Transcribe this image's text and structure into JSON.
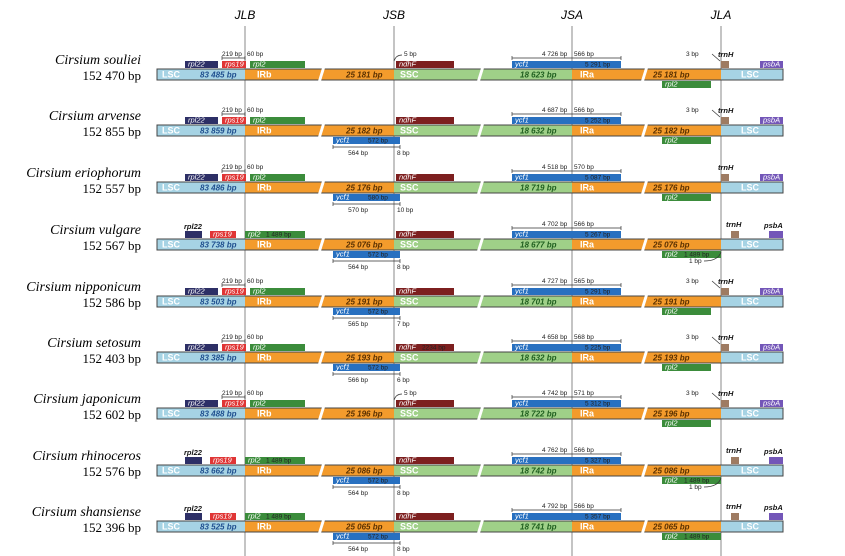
{
  "junctions": [
    "JLB",
    "JSB",
    "JSA",
    "JLA"
  ],
  "regions": {
    "lsc": "LSC",
    "irb": "IRb",
    "ssc": "SSC",
    "ira": "IRa"
  },
  "colors": {
    "lsc": "#a6d3e4",
    "ir": "#f39b2c",
    "ssc": "#9fd088",
    "dark_blue": "#2d2f66",
    "red": "#e03535",
    "green": "#3b8c3b",
    "maroon": "#7d1f1f",
    "blue": "#2870c0",
    "brown": "#9e7b62",
    "purple": "#7356b8",
    "junction_line": "#8a8a8a"
  },
  "genes": {
    "rpl22": "rpl22",
    "rps19": "rps19",
    "rpl2": "rpl2",
    "ndhF": "ndhF",
    "ycf1": "ycf1",
    "trnH": "trnH",
    "psbA": "psbA"
  },
  "species": [
    {
      "name": "Cirsium souliei",
      "length": "152 470 bp",
      "lsc": "83 485 bp",
      "irb": "25 181 bp",
      "ssc": "18 623 bp",
      "ira": "25 181 bp",
      "rps19_ann": "219 bp",
      "rps19_ann2": "60 bp",
      "jsb_top": "5 bp",
      "ycf1_top1": "4 726 bp",
      "ycf1_top2": "566 bp",
      "ycf1_inner": "5 291 bp",
      "ycf1_b_len": "",
      "ycf1_below1": "",
      "ycf1_below2": "",
      "rpl2_len": "",
      "rpl2a_len": "",
      "trnh_ann": "3 bp",
      "ndhf_len": ""
    },
    {
      "name": "Cirsium arvense",
      "length": "152 855 bp",
      "lsc": "83 859 bp",
      "irb": "25 182 bp",
      "ssc": "18 632 bp",
      "ira": "25 182 bp",
      "rps19_ann": "219 bp",
      "rps19_ann2": "60 bp",
      "jsb_top": "",
      "ycf1_top1": "4 687 bp",
      "ycf1_top2": "566 bp",
      "ycf1_inner": "5 252 bp",
      "ycf1_b_len": "572 bp",
      "ycf1_below1": "564 bp",
      "ycf1_below2": "8 bp",
      "rpl2_len": "",
      "rpl2a_len": "",
      "trnh_ann": "3 bp",
      "ndhf_len": ""
    },
    {
      "name": "Cirsium eriophorum",
      "length": "152 557 bp",
      "lsc": "83 486 bp",
      "irb": "25 176 bp",
      "ssc": "18 719 bp",
      "ira": "25 176 bp",
      "rps19_ann": "219 bp",
      "rps19_ann2": "60 bp",
      "jsb_top": "",
      "ycf1_top1": "4 518 bp",
      "ycf1_top2": "570 bp",
      "ycf1_inner": "5 087 bp",
      "ycf1_b_len": "580 bp",
      "ycf1_below1": "570 bp",
      "ycf1_below2": "10 bp",
      "rpl2_len": "",
      "rpl2a_len": "",
      "trnh_ann": "",
      "ndhf_len": ""
    },
    {
      "name": "Cirsium vulgare",
      "length": "152 567 bp",
      "lsc": "83 738 bp",
      "irb": "25 076 bp",
      "ssc": "18 677 bp",
      "ira": "25 076 bp",
      "rps19_ann": "",
      "rps19_ann2": "",
      "jsb_top": "",
      "ycf1_top1": "4 702 bp",
      "ycf1_top2": "566 bp",
      "ycf1_inner": "5 267 bp",
      "ycf1_b_len": "572 bp",
      "ycf1_below1": "564 bp",
      "ycf1_below2": "8 bp",
      "rpl2_len": "1 489 bp",
      "rpl2a_len": "1 489 bp",
      "trnh_ann": "1 bp",
      "ndhf_len": ""
    },
    {
      "name": "Cirsium nipponicum",
      "length": "152 586 bp",
      "lsc": "83 503 bp",
      "irb": "25 191 bp",
      "ssc": "18 701 bp",
      "ira": "25 191 bp",
      "rps19_ann": "219 bp",
      "rps19_ann2": "60 bp",
      "jsb_top": "",
      "ycf1_top1": "4 727 bp",
      "ycf1_top2": "565 bp",
      "ycf1_inner": "5 291 bp",
      "ycf1_b_len": "572 bp",
      "ycf1_below1": "565 bp",
      "ycf1_below2": "7 bp",
      "rpl2_len": "",
      "rpl2a_len": "",
      "trnh_ann": "3 bp",
      "ndhf_len": ""
    },
    {
      "name": "Cirsium setosum",
      "length": "152 403 bp",
      "lsc": "83 385 bp",
      "irb": "25 193 bp",
      "ssc": "18 632 bp",
      "ira": "25 193 bp",
      "rps19_ann": "219 bp",
      "rps19_ann2": "60 bp",
      "jsb_top": "",
      "ycf1_top1": "4 658 bp",
      "ycf1_top2": "568 bp",
      "ycf1_inner": "5 225 bp",
      "ycf1_b_len": "572 bp",
      "ycf1_below1": "566 bp",
      "ycf1_below2": "6 bp",
      "rpl2_len": "",
      "rpl2a_len": "",
      "trnh_ann": "3 bp",
      "ndhf_len": "2234 bp"
    },
    {
      "name": "Cirsium japonicum",
      "length": "152 602 bp",
      "lsc": "83 488 bp",
      "irb": "25 196 bp",
      "ssc": "18 722 bp",
      "ira": "25 196 bp",
      "rps19_ann": "219 bp",
      "rps19_ann2": "60 bp",
      "jsb_top": "5 bp",
      "ycf1_top1": "4 742 bp",
      "ycf1_top2": "571 bp",
      "ycf1_inner": "5 312 bp",
      "ycf1_b_len": "",
      "ycf1_below1": "",
      "ycf1_below2": "",
      "rpl2_len": "",
      "rpl2a_len": "",
      "trnh_ann": "3 bp",
      "ndhf_len": ""
    },
    {
      "name": "Cirsium rhinoceros",
      "length": "152 576 bp",
      "lsc": "83 662 bp",
      "irb": "25 086 bp",
      "ssc": "18 742 bp",
      "ira": "25 086 bp",
      "rps19_ann": "",
      "rps19_ann2": "",
      "jsb_top": "",
      "ycf1_top1": "4 762 bp",
      "ycf1_top2": "566 bp",
      "ycf1_inner": "5 327 bp",
      "ycf1_b_len": "572 bp",
      "ycf1_below1": "564 bp",
      "ycf1_below2": "8 bp",
      "rpl2_len": "1 489 bp",
      "rpl2a_len": "1 489 bp",
      "trnh_ann": "1 bp",
      "ndhf_len": ""
    },
    {
      "name": "Cirsium shansiense",
      "length": "152 396 bp",
      "lsc": "83 525 bp",
      "irb": "25 065 bp",
      "ssc": "18 741 bp",
      "ira": "25 065 bp",
      "rps19_ann": "",
      "rps19_ann2": "",
      "jsb_top": "",
      "ycf1_top1": "4 792 bp",
      "ycf1_top2": "566 bp",
      "ycf1_inner": "5 357 bp",
      "ycf1_b_len": "572 bp",
      "ycf1_below1": "564 bp",
      "ycf1_below2": "8 bp",
      "rpl2_len": "1 489 bp",
      "rpl2a_len": "1 489 bp",
      "trnh_ann": "",
      "ndhf_len": ""
    }
  ]
}
